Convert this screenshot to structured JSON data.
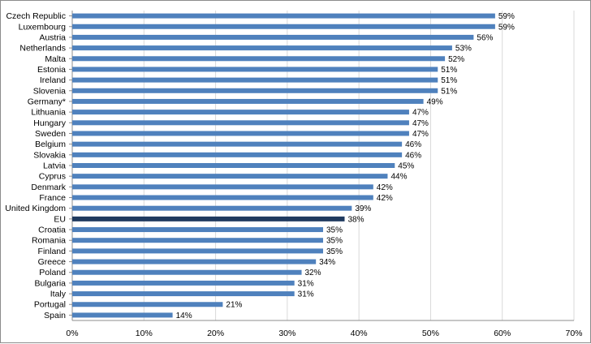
{
  "chart_data": {
    "type": "bar",
    "orientation": "horizontal",
    "categories": [
      "Czech Republic",
      "Luxembourg",
      "Austria",
      "Netherlands",
      "Malta",
      "Estonia",
      "Ireland",
      "Slovenia",
      "Germany*",
      "Lithuania",
      "Hungary",
      "Sweden",
      "Belgium",
      "Slovakia",
      "Latvia",
      "Cyprus",
      "Denmark",
      "France",
      "United Kingdom",
      "EU",
      "Croatia",
      "Romania",
      "Finland",
      "Greece",
      "Poland",
      "Bulgaria",
      "Italy",
      "Portugal",
      "Spain"
    ],
    "values": [
      59,
      59,
      56,
      53,
      52,
      51,
      51,
      51,
      49,
      47,
      47,
      47,
      46,
      46,
      45,
      44,
      42,
      42,
      39,
      38,
      35,
      35,
      35,
      34,
      32,
      31,
      31,
      21,
      14
    ],
    "value_labels": [
      "59%",
      "59%",
      "56%",
      "53%",
      "52%",
      "51%",
      "51%",
      "51%",
      "49%",
      "47%",
      "47%",
      "47%",
      "46%",
      "46%",
      "45%",
      "44%",
      "42%",
      "42%",
      "39%",
      "38%",
      "35%",
      "35%",
      "35%",
      "34%",
      "32%",
      "31%",
      "31%",
      "21%",
      "14%"
    ],
    "highlight": "EU",
    "xlim": [
      0,
      70
    ],
    "xticks": [
      "0%",
      "10%",
      "20%",
      "30%",
      "40%",
      "50%",
      "60%",
      "70%"
    ],
    "grid": true,
    "colors": {
      "bar": "#4f81bd",
      "bar_highlight": "#1f3a5f",
      "grid": "#d9d9d9"
    }
  }
}
